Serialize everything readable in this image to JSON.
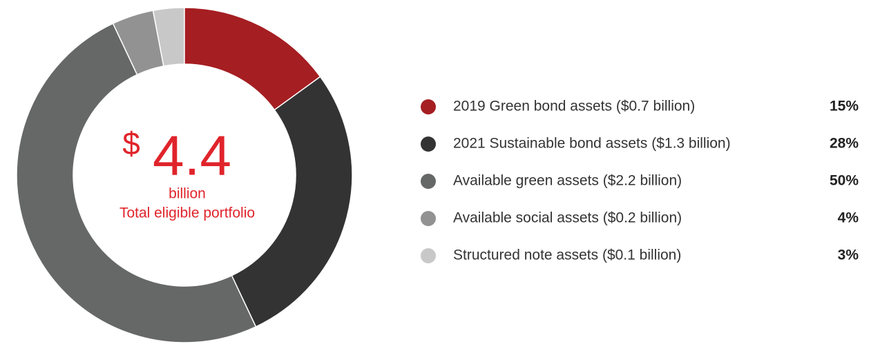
{
  "chart_data": {
    "type": "donut",
    "categories": [
      "2019 Green bond assets ($0.7 billion)",
      "2021 Sustainable bond assets ($1.3 billion)",
      "Available green assets ($2.2 billion)",
      "Available social assets ($0.2 billion)",
      "Structured note assets ($0.1 billion)"
    ],
    "values": [
      15,
      28,
      50,
      4,
      3
    ],
    "value_labels": [
      "15%",
      "28%",
      "50%",
      "4%",
      "3%"
    ],
    "colors": [
      "#a51e22",
      "#333333",
      "#666867",
      "#929292",
      "#c8c8c8"
    ],
    "center_currency": "$",
    "center_value": "4.4",
    "center_unit": "billion",
    "center_caption": "Total eligible portfolio"
  }
}
